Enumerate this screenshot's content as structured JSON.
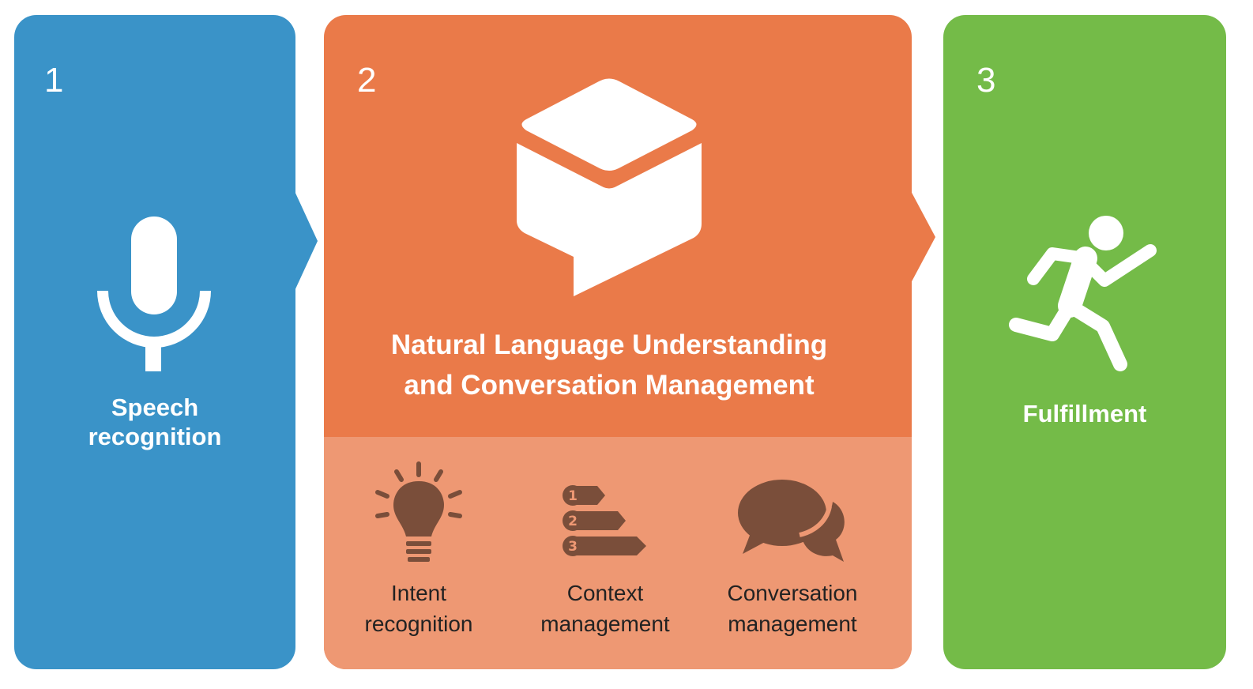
{
  "stages": [
    {
      "number": "1",
      "title_lines": [
        "Speech",
        "recognition"
      ],
      "icon": "microphone-icon",
      "color": "#3a93c8"
    },
    {
      "number": "2",
      "title_lines": [
        "Natural Language Understanding",
        "and Conversation Management"
      ],
      "icon": "chat-cube-icon",
      "color": "#ea7a49"
    },
    {
      "number": "3",
      "title_lines": [
        "Fulfillment"
      ],
      "icon": "running-person-icon",
      "color": "#74bb48"
    }
  ],
  "sub_components": [
    {
      "label_lines": [
        "Intent",
        "recognition"
      ],
      "icon": "lightbulb-icon"
    },
    {
      "label_lines": [
        "Context",
        "management"
      ],
      "icon": "numbered-list-icon"
    },
    {
      "label_lines": [
        "Conversation",
        "management"
      ],
      "icon": "speech-bubbles-icon"
    }
  ],
  "colors": {
    "lower_band": "#ee9873",
    "sub_icon": "#7a4e3a"
  }
}
